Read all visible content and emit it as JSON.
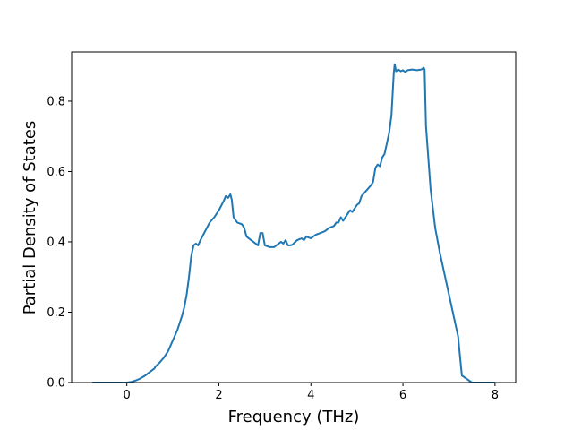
{
  "chart_data": {
    "type": "line",
    "title": "",
    "xlabel": "Frequency (THz)",
    "ylabel": "Partial Density of States",
    "xlim": [
      -1.2,
      8.45
    ],
    "ylim": [
      0.0,
      0.94
    ],
    "xticks": [
      0,
      2,
      4,
      6,
      8
    ],
    "xtick_labels": [
      "0",
      "2",
      "4",
      "6",
      "8"
    ],
    "yticks": [
      0.0,
      0.2,
      0.4,
      0.6,
      0.8
    ],
    "ytick_labels": [
      "0.0",
      "0.2",
      "0.4",
      "0.6",
      "0.8"
    ],
    "grid": false,
    "legend": "none",
    "color": "#1f77b4",
    "series": [
      {
        "x": [
          -0.75,
          -0.5,
          -0.25,
          0.0,
          0.1,
          0.2,
          0.3,
          0.4,
          0.5,
          0.6,
          0.62,
          0.7,
          0.8,
          0.9,
          1.0,
          1.1,
          1.2,
          1.25,
          1.3,
          1.35,
          1.4,
          1.45,
          1.5,
          1.55,
          1.6,
          1.7,
          1.8,
          1.9,
          2.0,
          2.1,
          2.15,
          2.2,
          2.25,
          2.28,
          2.32,
          2.4,
          2.5,
          2.55,
          2.6,
          2.7,
          2.8,
          2.85,
          2.9,
          2.95,
          3.0,
          3.1,
          3.2,
          3.3,
          3.35,
          3.4,
          3.45,
          3.5,
          3.55,
          3.6,
          3.7,
          3.8,
          3.85,
          3.9,
          4.0,
          4.1,
          4.2,
          4.3,
          4.4,
          4.5,
          4.55,
          4.6,
          4.65,
          4.7,
          4.8,
          4.85,
          4.9,
          5.0,
          5.05,
          5.1,
          5.2,
          5.3,
          5.35,
          5.4,
          5.45,
          5.5,
          5.55,
          5.6,
          5.65,
          5.7,
          5.75,
          5.8,
          5.82,
          5.85,
          5.9,
          5.95,
          6.0,
          6.05,
          6.1,
          6.2,
          6.3,
          6.4,
          6.45,
          6.47,
          6.5,
          6.6,
          6.7,
          6.8,
          6.9,
          7.0,
          7.1,
          7.15,
          7.2,
          7.22,
          7.25,
          7.28,
          7.5,
          8.0
        ],
        "y": [
          0.0,
          0.0,
          0.0,
          0.0,
          0.002,
          0.006,
          0.012,
          0.02,
          0.03,
          0.04,
          0.045,
          0.055,
          0.07,
          0.09,
          0.12,
          0.15,
          0.19,
          0.215,
          0.25,
          0.3,
          0.36,
          0.39,
          0.395,
          0.39,
          0.405,
          0.43,
          0.455,
          0.47,
          0.49,
          0.515,
          0.53,
          0.525,
          0.535,
          0.52,
          0.47,
          0.455,
          0.45,
          0.44,
          0.415,
          0.405,
          0.395,
          0.39,
          0.425,
          0.425,
          0.39,
          0.385,
          0.385,
          0.395,
          0.4,
          0.395,
          0.405,
          0.39,
          0.39,
          0.392,
          0.405,
          0.41,
          0.405,
          0.415,
          0.41,
          0.42,
          0.425,
          0.43,
          0.44,
          0.445,
          0.455,
          0.455,
          0.47,
          0.46,
          0.48,
          0.49,
          0.485,
          0.505,
          0.51,
          0.53,
          0.545,
          0.56,
          0.57,
          0.61,
          0.62,
          0.615,
          0.64,
          0.65,
          0.68,
          0.71,
          0.76,
          0.88,
          0.905,
          0.885,
          0.89,
          0.885,
          0.888,
          0.883,
          0.888,
          0.89,
          0.888,
          0.89,
          0.895,
          0.89,
          0.73,
          0.55,
          0.44,
          0.37,
          0.31,
          0.25,
          0.19,
          0.16,
          0.13,
          0.1,
          0.06,
          0.02,
          0.0,
          0.0
        ]
      }
    ]
  }
}
